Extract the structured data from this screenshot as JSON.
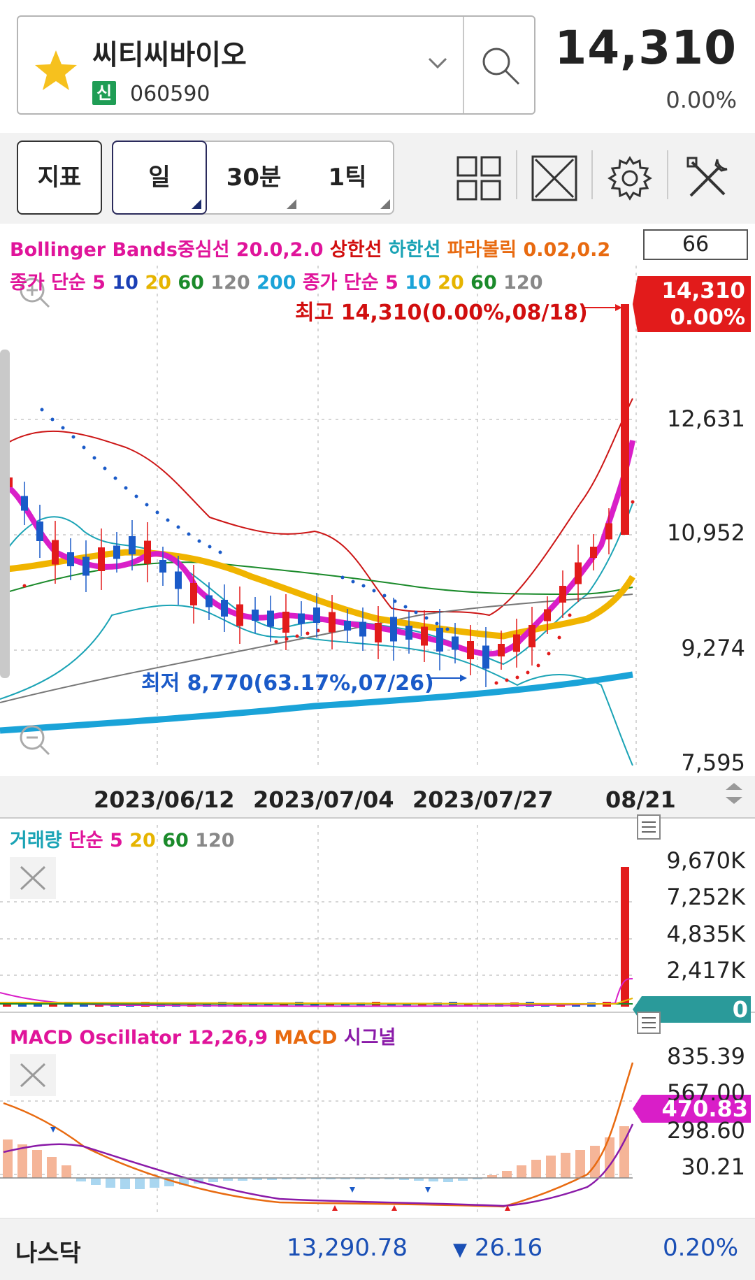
{
  "header": {
    "stock_name": "씨티씨바이오",
    "badge": "신",
    "code": "060590",
    "price": "14,310",
    "change": "0.00%"
  },
  "toolbar": {
    "indicator_label": "지표",
    "periods": [
      {
        "label": "일",
        "active": true
      },
      {
        "label": "30분",
        "active": false
      },
      {
        "label": "1틱",
        "active": false
      }
    ],
    "icons": [
      "layout-grid-icon",
      "fullscreen-icon",
      "gear-icon",
      "tools-icon"
    ]
  },
  "legend": {
    "line1": [
      {
        "text": "Bollinger Bands",
        "color": "#e0149a"
      },
      {
        "text": "중심선 20.0,2.0",
        "color": "#e0149a"
      },
      {
        "text": " 상한선",
        "color": "#d10e0e"
      },
      {
        "text": " 하한선",
        "color": "#1aa3b5"
      },
      {
        "text": " 파라볼릭 0.02,0.2",
        "color": "#e86a10"
      }
    ],
    "line2": [
      {
        "text": "종가 단순 5",
        "color": "#e0149a"
      },
      {
        "text": " 10",
        "color": "#1a3fb5"
      },
      {
        "text": " 20",
        "color": "#e6b400"
      },
      {
        "text": " 60",
        "color": "#1a8a2a"
      },
      {
        "text": " 120",
        "color": "#888888"
      },
      {
        "text": " 200",
        "color": "#1aa3d8"
      },
      {
        "text": " 종가 단순 5",
        "color": "#e0149a"
      },
      {
        "text": " 10",
        "color": "#1aa3d8"
      },
      {
        "text": " 20",
        "color": "#e6b400"
      },
      {
        "text": " 60",
        "color": "#1a8a2a"
      },
      {
        "text": " 120",
        "color": "#888888"
      }
    ],
    "count": "66"
  },
  "price_chart": {
    "current_tag": "14,310",
    "current_tag_pct": "0.00%",
    "high_label": "최고 14,310(0.00%,08/18)",
    "low_label": "최저 8,770(63.17%,07/26)",
    "y_ticks": [
      "12,631",
      "10,952",
      "9,274",
      "7,595"
    ],
    "x_ticks": [
      "2023/06/12",
      "2023/07/04",
      "2023/07/27",
      "08/21"
    ]
  },
  "volume_chart": {
    "legend": [
      {
        "text": "거래량",
        "color": "#1aa3b5"
      },
      {
        "text": " 단순 5",
        "color": "#e0149a"
      },
      {
        "text": " 20",
        "color": "#e6b400"
      },
      {
        "text": " 60",
        "color": "#1a8a2a"
      },
      {
        "text": " 120",
        "color": "#888888"
      }
    ],
    "y_ticks": [
      "9,670K",
      "7,252K",
      "4,835K",
      "2,417K"
    ],
    "current_tag": "0"
  },
  "macd_chart": {
    "legend": [
      {
        "text": "MACD Oscillator 12,26,9",
        "color": "#e0149a"
      },
      {
        "text": " MACD",
        "color": "#e86a10"
      },
      {
        "text": " 시그널",
        "color": "#8a1aa8"
      }
    ],
    "y_ticks": [
      "835.39",
      "567.00",
      "298.60",
      "30.21"
    ],
    "current_tag": "470.83"
  },
  "footer": {
    "name": "나스닥",
    "value": "13,290.78",
    "diff": "26.16",
    "pct": "0.20%"
  },
  "colors": {
    "up": "#e21b1b",
    "down": "#1a5ac8",
    "bb_mid": "#d91ec8",
    "ma20": "#f0b400",
    "ma200": "#1aa3d8"
  }
}
